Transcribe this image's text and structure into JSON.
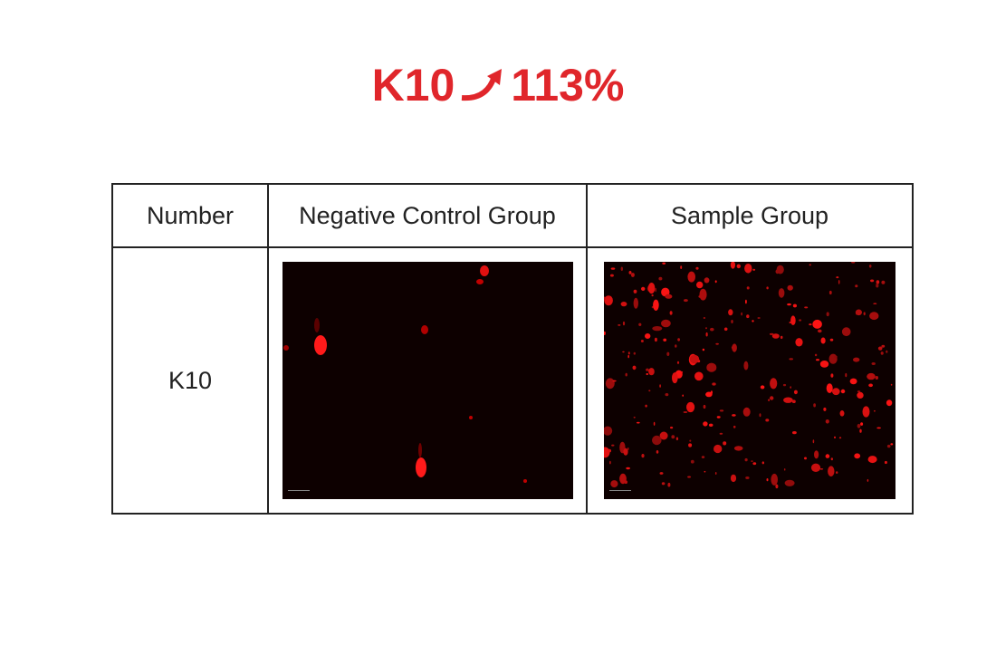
{
  "header": {
    "label": "K10",
    "value": "113%"
  },
  "table": {
    "headers": [
      "Number",
      "Negative Control Group",
      "Sample Group"
    ],
    "rows": [
      [
        "K10"
      ]
    ]
  }
}
